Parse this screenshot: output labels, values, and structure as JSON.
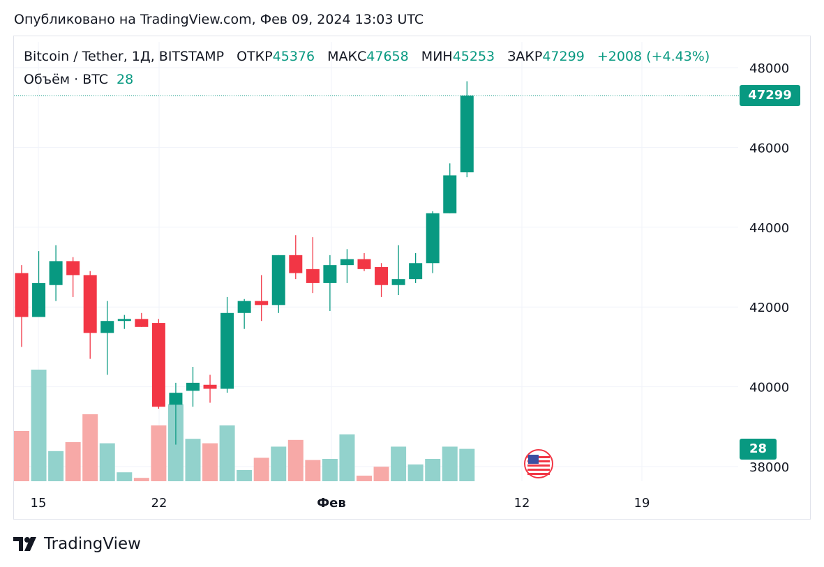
{
  "published": "Опубликовано на TradingView.com, Фев 09, 2024 13:03 UTC",
  "legend": {
    "symbol": "Bitcoin / Tether, 1Д, BITSTAMP",
    "open_label": "ОТКР",
    "open": "45376",
    "high_label": "МАКС",
    "high": "47658",
    "low_label": "МИН",
    "low": "45253",
    "close_label": "ЗАКР",
    "close": "47299",
    "change": "+2008 (+4.43%)",
    "volume_label": "Объём · BTC",
    "volume": "28"
  },
  "price_tag": "47299",
  "volume_tag": "28",
  "brand": "TradingView",
  "colors": {
    "up": "#089981",
    "down": "#f23645",
    "up_vol": "#92d2cc",
    "down_vol": "#f7a9a7"
  },
  "chart_data": {
    "type": "candlestick",
    "ylim": [
      37600,
      48500
    ],
    "y_ticks": [
      "48000",
      "46000",
      "44000",
      "42000",
      "40000",
      "38000"
    ],
    "x_ticks": [
      "15",
      "22",
      "Фев",
      "12",
      "19"
    ],
    "candles": [
      {
        "o": 42850,
        "h": 43050,
        "l": 41000,
        "c": 41750
      },
      {
        "o": 41750,
        "h": 43400,
        "l": 41750,
        "c": 42600
      },
      {
        "o": 42550,
        "h": 43550,
        "l": 42150,
        "c": 43150
      },
      {
        "o": 43150,
        "h": 43250,
        "l": 42250,
        "c": 42800
      },
      {
        "o": 42800,
        "h": 42900,
        "l": 40700,
        "c": 41350
      },
      {
        "o": 41350,
        "h": 42150,
        "l": 40300,
        "c": 41650
      },
      {
        "o": 41650,
        "h": 41800,
        "l": 41450,
        "c": 41700
      },
      {
        "o": 41700,
        "h": 41850,
        "l": 41500,
        "c": 41500
      },
      {
        "o": 41600,
        "h": 41700,
        "l": 39450,
        "c": 39500
      },
      {
        "o": 39550,
        "h": 40100,
        "l": 38550,
        "c": 39850
      },
      {
        "o": 39900,
        "h": 40500,
        "l": 39500,
        "c": 40100
      },
      {
        "o": 40050,
        "h": 40300,
        "l": 39600,
        "c": 39950
      },
      {
        "o": 39950,
        "h": 42250,
        "l": 39850,
        "c": 41850
      },
      {
        "o": 41850,
        "h": 42200,
        "l": 41450,
        "c": 42150
      },
      {
        "o": 42150,
        "h": 42800,
        "l": 41650,
        "c": 42050
      },
      {
        "o": 42050,
        "h": 43300,
        "l": 41850,
        "c": 43300
      },
      {
        "o": 43300,
        "h": 43800,
        "l": 42700,
        "c": 42850
      },
      {
        "o": 42950,
        "h": 43750,
        "l": 42350,
        "c": 42600
      },
      {
        "o": 42600,
        "h": 43300,
        "l": 41900,
        "c": 43050
      },
      {
        "o": 43050,
        "h": 43450,
        "l": 42600,
        "c": 43200
      },
      {
        "o": 43200,
        "h": 43350,
        "l": 42900,
        "c": 42950
      },
      {
        "o": 43000,
        "h": 43100,
        "l": 42250,
        "c": 42550
      },
      {
        "o": 42550,
        "h": 43550,
        "l": 42300,
        "c": 42700
      },
      {
        "o": 42700,
        "h": 43350,
        "l": 42600,
        "c": 43100
      },
      {
        "o": 43100,
        "h": 44400,
        "l": 42850,
        "c": 44350
      },
      {
        "o": 44350,
        "h": 45600,
        "l": 44350,
        "c": 45300
      },
      {
        "o": 45376,
        "h": 47658,
        "l": 45253,
        "c": 47299
      }
    ],
    "volumes": [
      {
        "v": 0.45,
        "up": false
      },
      {
        "v": 1.0,
        "up": true
      },
      {
        "v": 0.27,
        "up": true
      },
      {
        "v": 0.35,
        "up": false
      },
      {
        "v": 0.6,
        "up": false
      },
      {
        "v": 0.34,
        "up": true
      },
      {
        "v": 0.08,
        "up": true
      },
      {
        "v": 0.03,
        "up": false
      },
      {
        "v": 0.5,
        "up": false
      },
      {
        "v": 0.69,
        "up": true
      },
      {
        "v": 0.38,
        "up": true
      },
      {
        "v": 0.34,
        "up": false
      },
      {
        "v": 0.5,
        "up": true
      },
      {
        "v": 0.1,
        "up": true
      },
      {
        "v": 0.21,
        "up": false
      },
      {
        "v": 0.31,
        "up": true
      },
      {
        "v": 0.37,
        "up": false
      },
      {
        "v": 0.19,
        "up": false
      },
      {
        "v": 0.2,
        "up": true
      },
      {
        "v": 0.42,
        "up": true
      },
      {
        "v": 0.05,
        "up": false
      },
      {
        "v": 0.13,
        "up": false
      },
      {
        "v": 0.31,
        "up": true
      },
      {
        "v": 0.15,
        "up": true
      },
      {
        "v": 0.2,
        "up": true
      },
      {
        "v": 0.31,
        "up": true
      },
      {
        "v": 0.29,
        "up": true
      }
    ]
  }
}
